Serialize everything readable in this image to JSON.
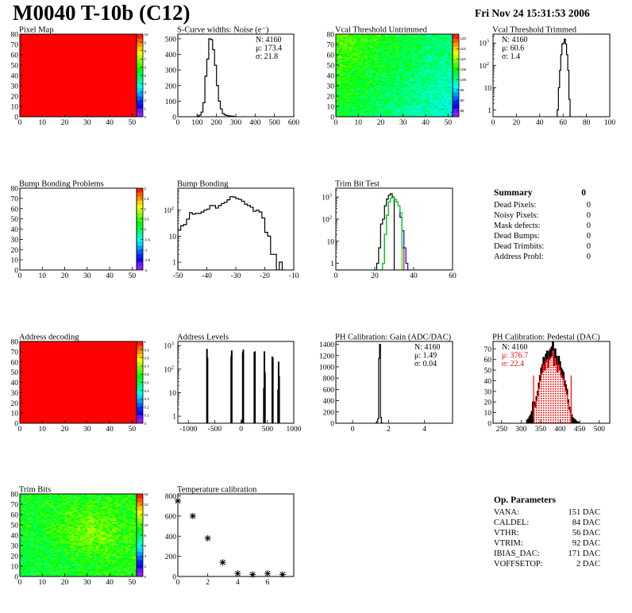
{
  "header": {
    "title": "M0040 T-10b (C12)",
    "date": "Fri Nov 24 15:31:53 2006"
  },
  "summary": {
    "title": "Summary",
    "total": "0",
    "items": [
      {
        "label": "Dead Pixels:",
        "value": "0"
      },
      {
        "label": "Noisy Pixels:",
        "value": "0"
      },
      {
        "label": "Mask defects:",
        "value": "0"
      },
      {
        "label": "Dead Bumps:",
        "value": "0"
      },
      {
        "label": "Dead Trimbits:",
        "value": "0"
      },
      {
        "label": "Address Probl:",
        "value": "0"
      }
    ]
  },
  "op_parameters": {
    "title": "Op. Parameters",
    "items": [
      {
        "label": "VANA:",
        "value": "151 DAC"
      },
      {
        "label": "CALDEL:",
        "value": "84 DAC"
      },
      {
        "label": "VTHR:",
        "value": "56 DAC"
      },
      {
        "label": "VTRIM:",
        "value": "92 DAC"
      },
      {
        "label": "IBIAS_DAC:",
        "value": "171 DAC"
      },
      {
        "label": "VOFFSETOP:",
        "value": "2 DAC"
      }
    ]
  },
  "colors": {
    "line": "#000000",
    "palette": "rainbow",
    "trim_green": "#00ee00",
    "trim_blue": "#0000ff",
    "trim_red": "#ff0000",
    "pedestal_red": "#ff0000"
  },
  "chart_data": [
    {
      "id": "pixel-map",
      "title": "Pixel Map",
      "type": "heatmap",
      "xlim": [
        0,
        52
      ],
      "ylim": [
        0,
        80
      ],
      "xticks": [
        0,
        10,
        20,
        30,
        40,
        50
      ],
      "yticks": [
        0,
        10,
        20,
        30,
        40,
        50,
        60,
        70,
        80
      ],
      "zlim": [
        0,
        10
      ],
      "zticks": [
        0,
        1,
        2,
        3,
        4,
        5,
        6,
        7,
        8,
        9,
        10
      ],
      "z_uniform": 10
    },
    {
      "id": "s-curve-widths",
      "title": "S-Curve widths: Noise (e⁻)",
      "type": "bar",
      "histogram": true,
      "xlim": [
        0,
        600
      ],
      "ylim": [
        0,
        530
      ],
      "xticks": [
        0,
        100,
        200,
        300,
        400,
        500,
        600
      ],
      "yticks": [
        0,
        100,
        200,
        300,
        400,
        500
      ],
      "stats": {
        "position": "top-right",
        "lines": [
          {
            "text": "N: 4160"
          },
          {
            "text": "μ: 173.4"
          },
          {
            "text": "σ: 21.8"
          }
        ]
      },
      "series": [
        {
          "bin_start": 100,
          "bin_width": 10,
          "values": [
            5,
            10,
            30,
            90,
            260,
            370,
            500,
            495,
            430,
            330,
            200,
            100,
            50,
            20,
            12,
            8,
            6,
            4,
            3,
            1
          ]
        }
      ]
    },
    {
      "id": "vcal-threshold-untrimmed",
      "title": "Vcal Threshold Untrimmed",
      "type": "heatmap",
      "xlim": [
        0,
        52
      ],
      "ylim": [
        0,
        80
      ],
      "xticks": [
        0,
        10,
        20,
        30,
        40,
        50
      ],
      "yticks": [
        0,
        10,
        20,
        30,
        40,
        50,
        60,
        70,
        80
      ],
      "zlim": [
        82,
        122
      ],
      "zticks": [
        85,
        90,
        95,
        100,
        105,
        110,
        115,
        120
      ],
      "z_trend": {
        "top_left": 108,
        "top_right": 101,
        "bottom_left": 104,
        "bottom_right": 97,
        "spread": 3
      }
    },
    {
      "id": "vcal-threshold-trimmed",
      "title": "Vcal Threshold Trimmed",
      "type": "bar",
      "histogram": true,
      "logy": true,
      "xlim": [
        0,
        100
      ],
      "ylim": [
        0.5,
        2500
      ],
      "xticks": [
        0,
        20,
        40,
        60,
        80,
        100
      ],
      "yticks": [
        1,
        10,
        100,
        1000
      ],
      "stats": {
        "position": "top-left",
        "lines": [
          {
            "text": "N: 4160"
          },
          {
            "text": "μ: 60.6"
          },
          {
            "text": "σ:  1.4"
          }
        ]
      },
      "series": [
        {
          "bin_start": 54,
          "bin_width": 1,
          "values": [
            0,
            1,
            10,
            60,
            300,
            900,
            1000,
            1500,
            900,
            300,
            60,
            3,
            0
          ]
        }
      ]
    },
    {
      "id": "bump-bonding-problems",
      "title": "Bump Bonding Problems",
      "type": "heatmap",
      "xlim": [
        0,
        52
      ],
      "ylim": [
        0,
        80
      ],
      "xticks": [
        0,
        10,
        20,
        30,
        40,
        50
      ],
      "yticks": [
        0,
        10,
        20,
        30,
        40,
        50,
        60,
        70,
        80
      ],
      "zlim": [
        -2,
        2
      ],
      "zticks": [
        -2,
        -1.5,
        -1,
        -0.5,
        0,
        0.5,
        1,
        1.5,
        2
      ],
      "empty": true
    },
    {
      "id": "bump-bonding",
      "title": "Bump Bonding",
      "type": "bar",
      "histogram": true,
      "logy": true,
      "xlim": [
        -50,
        -10
      ],
      "ylim": [
        0.5,
        700
      ],
      "xticks": [
        -50,
        -40,
        -30,
        -20,
        -10
      ],
      "yticks": [
        1,
        10,
        100
      ],
      "series": [
        {
          "bin_start": -50,
          "bin_width": 1,
          "values": [
            17,
            25,
            28,
            45,
            80,
            70,
            75,
            75,
            85,
            100,
            110,
            150,
            150,
            120,
            150,
            180,
            200,
            250,
            330,
            320,
            280,
            260,
            220,
            170,
            150,
            130,
            90,
            100,
            85,
            50,
            14,
            10,
            2,
            2,
            0,
            1,
            0
          ]
        }
      ]
    },
    {
      "id": "trim-bit-test",
      "title": "Trim Bit Test",
      "type": "bar",
      "histogram": true,
      "logy": true,
      "xlim": [
        0,
        60
      ],
      "ylim": [
        0.5,
        2500
      ],
      "xticks": [
        0,
        20,
        40,
        60
      ],
      "yticks": [
        1,
        10,
        100,
        1000
      ],
      "series": [
        {
          "color": "#000000",
          "bin_start": 20,
          "bin_width": 1,
          "values": [
            0,
            1,
            5,
            60,
            100,
            400,
            800,
            1200,
            1400,
            1000,
            0
          ]
        },
        {
          "color": "#ff0000",
          "bin_start": 24,
          "bin_width": 1,
          "values": [
            1,
            20,
            150,
            600,
            900,
            950,
            800,
            600,
            400,
            120,
            5,
            0
          ]
        },
        {
          "color": "#0000ff",
          "bin_start": 24,
          "bin_width": 1,
          "values": [
            1,
            20,
            150,
            600,
            900,
            950,
            800,
            600,
            400,
            120,
            30,
            5,
            1,
            0
          ]
        },
        {
          "color": "#00ee00",
          "bin_start": 0,
          "bin_width": 1,
          "values": [
            0,
            0,
            0,
            0,
            0,
            0,
            0,
            0,
            0,
            0,
            0,
            0,
            0,
            0,
            0,
            0,
            0,
            0,
            0,
            0,
            0,
            0,
            0,
            0,
            1,
            20,
            150,
            600,
            900,
            950,
            800,
            600,
            400,
            200,
            0,
            0,
            0,
            0,
            0,
            0,
            0,
            0,
            0,
            0,
            0,
            0,
            0,
            0,
            0,
            0,
            0,
            0,
            0,
            0,
            0,
            0,
            0,
            0,
            0,
            0
          ]
        }
      ]
    },
    {
      "id": "address-decoding",
      "title": "Address decoding",
      "type": "heatmap",
      "xlim": [
        0,
        52
      ],
      "ylim": [
        0,
        80
      ],
      "xticks": [
        0,
        10,
        20,
        30,
        40,
        50
      ],
      "yticks": [
        0,
        10,
        20,
        30,
        40,
        50,
        60,
        70,
        80
      ],
      "zlim": [
        0,
        1
      ],
      "zticks": [
        0,
        0.1,
        0.2,
        0.3,
        0.4,
        0.5,
        0.6,
        0.7,
        0.8,
        0.9,
        1
      ],
      "z_uniform": 1
    },
    {
      "id": "address-levels",
      "title": "Address Levels",
      "type": "bar",
      "logy": true,
      "xlim": [
        -1200,
        1000
      ],
      "ylim": [
        0.5,
        1500
      ],
      "xticks": [
        -1000,
        -500,
        0,
        500,
        1000
      ],
      "yticks": [
        1,
        10,
        100,
        1000
      ],
      "series": [
        {
          "bin_width": 10,
          "points": [
            [
              -650,
              700
            ],
            [
              -640,
              300
            ],
            [
              -190,
              350
            ],
            [
              -180,
              600
            ],
            [
              20,
              0.7
            ],
            [
              30,
              500
            ],
            [
              40,
              650
            ],
            [
              250,
              500
            ],
            [
              260,
              550
            ],
            [
              430,
              15
            ],
            [
              440,
              550
            ],
            [
              450,
              70
            ],
            [
              590,
              330
            ],
            [
              600,
              300
            ],
            [
              700,
              13
            ],
            [
              710,
              200
            ],
            [
              720,
              50
            ]
          ]
        }
      ]
    },
    {
      "id": "ph-calibration-gain",
      "title": "PH Calibration: Gain (ADC/DAC)",
      "type": "bar",
      "histogram": true,
      "xlim": [
        -0.93,
        5.56
      ],
      "ylim": [
        0,
        1450
      ],
      "xticks": [
        0,
        2,
        4
      ],
      "yticks": [
        0,
        200,
        400,
        600,
        800,
        1000,
        1200,
        1400
      ],
      "stats": {
        "position": "top-right",
        "lines": [
          {
            "text": "N: 4160"
          },
          {
            "text": "μ: 1.49"
          },
          {
            "text": "σ: 0.04"
          }
        ]
      },
      "series": [
        {
          "bin_start": 1.3,
          "bin_width": 0.05,
          "values": [
            5,
            30,
            80,
            1150,
            1400,
            100,
            5,
            0
          ]
        }
      ]
    },
    {
      "id": "ph-calibration-pedestal",
      "title": "PH Calibration: Pedestal (DAC)",
      "type": "bar",
      "histogram": true,
      "xlim": [
        228,
        527
      ],
      "ylim": [
        0,
        77
      ],
      "xticks": [
        250,
        300,
        350,
        400,
        450,
        500
      ],
      "yticks": [
        0,
        10,
        20,
        30,
        40,
        50,
        60,
        70
      ],
      "stats": {
        "position": "top-left",
        "lines": [
          {
            "text": "N: 4160"
          },
          {
            "text": "μ: 376.7",
            "color": "#ff0000"
          },
          {
            "text": "σ: 22.4",
            "color": "#ff0000"
          }
        ]
      },
      "markers": {
        "color": "#ff0000",
        "x": [
          332,
          428
        ],
        "height": 45
      },
      "series": [
        {
          "color": "#000000",
          "fill": "#000000",
          "bin_start": 314,
          "bin_width": 3,
          "values": [
            3,
            4,
            6,
            8,
            11,
            20,
            20,
            18,
            25,
            30,
            38,
            45,
            52,
            55,
            62,
            58,
            65,
            68,
            60,
            68,
            70,
            72,
            78,
            62,
            70,
            63,
            55,
            63,
            58,
            52,
            50,
            48,
            40,
            36,
            32,
            22,
            15,
            12,
            8,
            5,
            4,
            3,
            2,
            1,
            1
          ]
        },
        {
          "color": "#ff0000",
          "fill": "dotted-red",
          "bin_start": 332,
          "bin_width": 3,
          "values": [
            17,
            15,
            21,
            26,
            33,
            40,
            46,
            48,
            55,
            50,
            58,
            60,
            52,
            60,
            62,
            63,
            68,
            54,
            61,
            55,
            48,
            55,
            50,
            45,
            43,
            41,
            35,
            31,
            27,
            19,
            13,
            10
          ]
        }
      ]
    },
    {
      "id": "trim-bits",
      "title": "Trim Bits",
      "type": "heatmap",
      "xlim": [
        0,
        52
      ],
      "ylim": [
        0,
        80
      ],
      "xticks": [
        0,
        10,
        20,
        30,
        40,
        50
      ],
      "yticks": [
        0,
        10,
        20,
        30,
        40,
        50,
        60,
        70,
        80
      ],
      "zlim": [
        0,
        16
      ],
      "zticks": [
        0,
        2,
        4,
        6,
        8,
        10,
        12,
        14,
        16
      ],
      "z_trend": {
        "top_left": 9,
        "top_right": 9.5,
        "bottom_left": 8.5,
        "bottom_right": 9.5,
        "center": 11,
        "spread": 1.3
      }
    },
    {
      "id": "temperature-calibration",
      "title": "Temperature calibration",
      "type": "scatter",
      "xlim": [
        0,
        7.75
      ],
      "ylim": [
        0,
        820
      ],
      "xticks": [
        0,
        2,
        4,
        6
      ],
      "yticks": [
        0,
        200,
        400,
        600,
        800
      ],
      "series": [
        {
          "marker": "asterisk",
          "x": [
            0,
            1,
            2,
            3,
            4,
            5,
            6,
            7
          ],
          "y": [
            750,
            600,
            380,
            140,
            30,
            20,
            30,
            20
          ]
        }
      ]
    }
  ]
}
